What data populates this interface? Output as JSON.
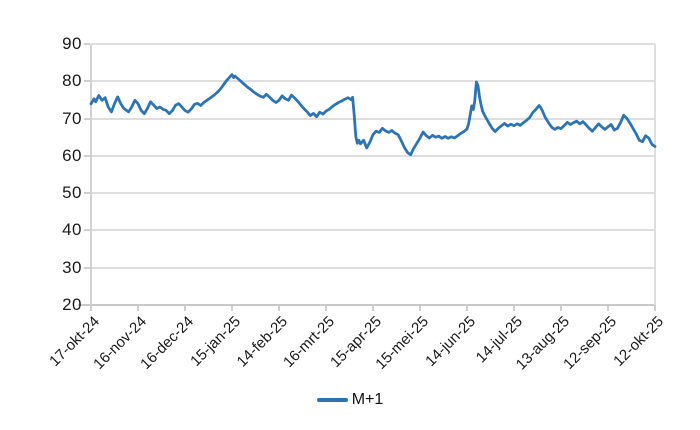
{
  "colors": {
    "series_blue": "#2E74B5",
    "gridline": "#DEDEDE",
    "axis": "#C9C9C9",
    "tick": "#CFCFCF",
    "text": "#1A1A1A",
    "background": "#FFFFFF"
  },
  "chart_data": {
    "type": "line",
    "title": "",
    "xlabel": "",
    "ylabel": "",
    "grid": true,
    "legend_position": "bottom-center",
    "ylim": [
      20,
      90
    ],
    "y_ticks": [
      20,
      30,
      40,
      50,
      60,
      70,
      80,
      90
    ],
    "xlim_days": [
      0,
      360
    ],
    "x_tick_days": [
      0,
      30,
      60,
      90,
      120,
      150,
      180,
      210,
      240,
      270,
      300,
      330,
      360
    ],
    "x_tick_labels": [
      "17-okt-24",
      "16-nov-24",
      "16-dec-24",
      "15-jan-25",
      "14-feb-25",
      "16-mrt-25",
      "15-apr-25",
      "15-mei-25",
      "14-jun-25",
      "14-jul-25",
      "13-aug-25",
      "12-sep-25",
      "12-okt-25"
    ],
    "series": [
      {
        "name": "M+1",
        "color": "#2E74B5",
        "points": [
          [
            0,
            74.0
          ],
          [
            2,
            75.3
          ],
          [
            3,
            74.5
          ],
          [
            5,
            76.2
          ],
          [
            7,
            74.9
          ],
          [
            9,
            75.6
          ],
          [
            11,
            73.1
          ],
          [
            13,
            71.8
          ],
          [
            15,
            74.0
          ],
          [
            17,
            75.8
          ],
          [
            19,
            74.0
          ],
          [
            21,
            72.7
          ],
          [
            24,
            71.8
          ],
          [
            26,
            73.1
          ],
          [
            28,
            74.9
          ],
          [
            30,
            74.0
          ],
          [
            32,
            72.2
          ],
          [
            34,
            71.3
          ],
          [
            36,
            72.7
          ],
          [
            38,
            74.5
          ],
          [
            40,
            73.6
          ],
          [
            42,
            72.7
          ],
          [
            44,
            73.1
          ],
          [
            46,
            72.5
          ],
          [
            48,
            72.2
          ],
          [
            50,
            71.3
          ],
          [
            52,
            72.2
          ],
          [
            54,
            73.6
          ],
          [
            56,
            74.0
          ],
          [
            58,
            73.1
          ],
          [
            60,
            72.2
          ],
          [
            62,
            71.7
          ],
          [
            64,
            72.6
          ],
          [
            66,
            73.8
          ],
          [
            68,
            74.1
          ],
          [
            70,
            73.5
          ],
          [
            72,
            74.3
          ],
          [
            74,
            74.9
          ],
          [
            76,
            75.5
          ],
          [
            78,
            76.1
          ],
          [
            80,
            76.8
          ],
          [
            82,
            77.6
          ],
          [
            84,
            78.7
          ],
          [
            86,
            79.9
          ],
          [
            88,
            80.9
          ],
          [
            90,
            81.8
          ],
          [
            91,
            81.0
          ],
          [
            92,
            81.4
          ],
          [
            94,
            80.6
          ],
          [
            96,
            79.9
          ],
          [
            98,
            79.1
          ],
          [
            100,
            78.4
          ],
          [
            102,
            77.8
          ],
          [
            104,
            77.1
          ],
          [
            106,
            76.5
          ],
          [
            108,
            76.0
          ],
          [
            110,
            75.7
          ],
          [
            112,
            76.5
          ],
          [
            114,
            75.7
          ],
          [
            116,
            74.9
          ],
          [
            118,
            74.3
          ],
          [
            120,
            74.9
          ],
          [
            122,
            76.1
          ],
          [
            124,
            75.3
          ],
          [
            126,
            74.9
          ],
          [
            128,
            76.3
          ],
          [
            130,
            75.5
          ],
          [
            132,
            74.6
          ],
          [
            134,
            73.6
          ],
          [
            136,
            72.6
          ],
          [
            138,
            71.8
          ],
          [
            140,
            70.8
          ],
          [
            142,
            71.4
          ],
          [
            144,
            70.5
          ],
          [
            146,
            71.7
          ],
          [
            148,
            71.2
          ],
          [
            150,
            72.0
          ],
          [
            152,
            72.5
          ],
          [
            154,
            73.2
          ],
          [
            156,
            73.8
          ],
          [
            158,
            74.3
          ],
          [
            160,
            74.7
          ],
          [
            162,
            75.2
          ],
          [
            164,
            75.6
          ],
          [
            166,
            75.1
          ],
          [
            167,
            75.7
          ],
          [
            168,
            71.0
          ],
          [
            169,
            65.2
          ],
          [
            170,
            63.4
          ],
          [
            171,
            64.2
          ],
          [
            172,
            63.2
          ],
          [
            174,
            64.2
          ],
          [
            176,
            62.1
          ],
          [
            178,
            63.7
          ],
          [
            180,
            65.7
          ],
          [
            182,
            66.6
          ],
          [
            184,
            66.3
          ],
          [
            186,
            67.4
          ],
          [
            188,
            66.7
          ],
          [
            190,
            66.3
          ],
          [
            192,
            66.8
          ],
          [
            194,
            66.1
          ],
          [
            196,
            65.7
          ],
          [
            198,
            64.1
          ],
          [
            200,
            62.3
          ],
          [
            202,
            60.9
          ],
          [
            204,
            60.3
          ],
          [
            206,
            62.0
          ],
          [
            208,
            63.4
          ],
          [
            210,
            64.8
          ],
          [
            212,
            66.4
          ],
          [
            214,
            65.4
          ],
          [
            216,
            64.8
          ],
          [
            218,
            65.5
          ],
          [
            220,
            65.0
          ],
          [
            222,
            65.3
          ],
          [
            224,
            64.7
          ],
          [
            226,
            65.2
          ],
          [
            228,
            64.7
          ],
          [
            230,
            65.1
          ],
          [
            232,
            64.8
          ],
          [
            234,
            65.4
          ],
          [
            236,
            66.0
          ],
          [
            238,
            66.5
          ],
          [
            240,
            67.2
          ],
          [
            241,
            68.6
          ],
          [
            242,
            70.9
          ],
          [
            243,
            73.4
          ],
          [
            244,
            72.4
          ],
          [
            245,
            74.9
          ],
          [
            246,
            79.8
          ],
          [
            247,
            78.8
          ],
          [
            248,
            75.8
          ],
          [
            249,
            73.6
          ],
          [
            250,
            71.9
          ],
          [
            252,
            70.3
          ],
          [
            254,
            68.8
          ],
          [
            256,
            67.4
          ],
          [
            258,
            66.5
          ],
          [
            260,
            67.4
          ],
          [
            262,
            68.1
          ],
          [
            264,
            68.7
          ],
          [
            266,
            68.0
          ],
          [
            268,
            68.5
          ],
          [
            270,
            68.1
          ],
          [
            272,
            68.6
          ],
          [
            274,
            68.2
          ],
          [
            276,
            68.9
          ],
          [
            278,
            69.5
          ],
          [
            280,
            70.3
          ],
          [
            282,
            71.6
          ],
          [
            284,
            72.5
          ],
          [
            286,
            73.5
          ],
          [
            287,
            73.0
          ],
          [
            288,
            72.2
          ],
          [
            290,
            70.3
          ],
          [
            292,
            68.9
          ],
          [
            294,
            67.7
          ],
          [
            296,
            67.1
          ],
          [
            298,
            67.6
          ],
          [
            300,
            67.3
          ],
          [
            302,
            68.1
          ],
          [
            304,
            69.0
          ],
          [
            306,
            68.4
          ],
          [
            308,
            68.9
          ],
          [
            310,
            69.3
          ],
          [
            312,
            68.6
          ],
          [
            314,
            69.2
          ],
          [
            316,
            68.3
          ],
          [
            318,
            67.4
          ],
          [
            320,
            66.6
          ],
          [
            322,
            67.6
          ],
          [
            324,
            68.6
          ],
          [
            326,
            67.8
          ],
          [
            328,
            67.1
          ],
          [
            330,
            67.8
          ],
          [
            332,
            68.4
          ],
          [
            334,
            66.9
          ],
          [
            336,
            67.4
          ],
          [
            338,
            68.9
          ],
          [
            340,
            70.9
          ],
          [
            342,
            70.1
          ],
          [
            344,
            68.8
          ],
          [
            346,
            67.3
          ],
          [
            348,
            65.9
          ],
          [
            350,
            64.2
          ],
          [
            352,
            63.8
          ],
          [
            354,
            65.4
          ],
          [
            356,
            64.8
          ],
          [
            358,
            63.1
          ],
          [
            360,
            62.5
          ]
        ]
      }
    ]
  }
}
